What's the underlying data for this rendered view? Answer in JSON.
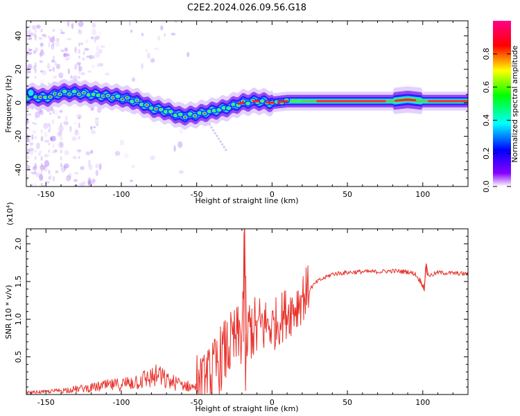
{
  "title": "C2E2.2024.026.09.56.G18",
  "chart_data": [
    {
      "type": "heatmap",
      "xlabel": "Height of straight line (km)",
      "ylabel": "Frequency (Hz)",
      "xlim": [
        -163,
        130
      ],
      "ylim": [
        -50,
        49
      ],
      "x_ticks": [
        -150,
        -100,
        -50,
        0,
        50,
        100
      ],
      "y_ticks": [
        -40,
        -20,
        0,
        20,
        40
      ],
      "colorbar": {
        "label": "Normalized spectral amplitude",
        "range": [
          0,
          1
        ],
        "ticks": [
          "0.0",
          "0.2",
          "0.4",
          "0.6",
          "0.8"
        ],
        "colors": [
          "#ffffff",
          "#8800ff",
          "#0000ff",
          "#00ffff",
          "#00ff00",
          "#ffff00",
          "#ff0000",
          "#ff0088"
        ]
      },
      "ridge": {
        "x": [
          -160,
          -150,
          -140,
          -130,
          -120,
          -110,
          -100,
          -90,
          -80,
          -70,
          -60,
          -50,
          -45,
          -40,
          -30,
          -20,
          -10,
          0,
          10,
          20,
          30,
          40,
          50,
          60,
          70,
          80,
          90,
          100,
          110,
          120,
          130
        ],
        "y": [
          4,
          3,
          6,
          6,
          5,
          4,
          3,
          1,
          -3,
          -5,
          -8,
          -7,
          -6,
          -5,
          -3,
          0,
          1,
          0,
          1,
          1,
          1,
          1,
          1,
          1,
          1,
          1,
          2,
          1,
          1,
          1,
          1
        ]
      }
    },
    {
      "type": "line",
      "xlabel": "Height of straight line (km)",
      "ylabel": "SNR (10 * v/v)",
      "y_multiplier": "(x10",
      "y_multiplier_exp": "4",
      "y_multiplier_close": ")",
      "xlim": [
        -163,
        130
      ],
      "ylim": [
        0,
        2.2
      ],
      "x_ticks": [
        -150,
        -100,
        -50,
        0,
        50,
        100
      ],
      "y_ticks": [
        0.5,
        1.0,
        1.5,
        2.0
      ],
      "series": [
        {
          "color": "#e8302a",
          "x": [
            -163,
            -150,
            -140,
            -130,
            -120,
            -110,
            -100,
            -90,
            -80,
            -75,
            -70,
            -60,
            -55,
            -50,
            -45,
            -40,
            -35,
            -30,
            -25,
            -20,
            -18,
            -17,
            -15,
            -10,
            -5,
            0,
            5,
            10,
            15,
            20,
            30,
            40,
            50,
            60,
            70,
            80,
            90,
            95,
            100,
            101,
            102,
            103,
            105,
            110,
            120,
            130
          ],
          "y": [
            0.03,
            0.04,
            0.06,
            0.08,
            0.1,
            0.13,
            0.15,
            0.2,
            0.25,
            0.28,
            0.2,
            0.15,
            0.12,
            0.1,
            0.1,
            0.25,
            0.45,
            0.6,
            0.7,
            0.8,
            2.2,
            0.6,
            0.9,
            0.85,
            0.95,
            0.9,
            1.0,
            1.1,
            1.15,
            1.3,
            1.5,
            1.6,
            1.62,
            1.63,
            1.63,
            1.64,
            1.63,
            1.6,
            1.45,
            1.4,
            1.72,
            1.6,
            1.58,
            1.62,
            1.61,
            1.6
          ]
        }
      ]
    }
  ]
}
